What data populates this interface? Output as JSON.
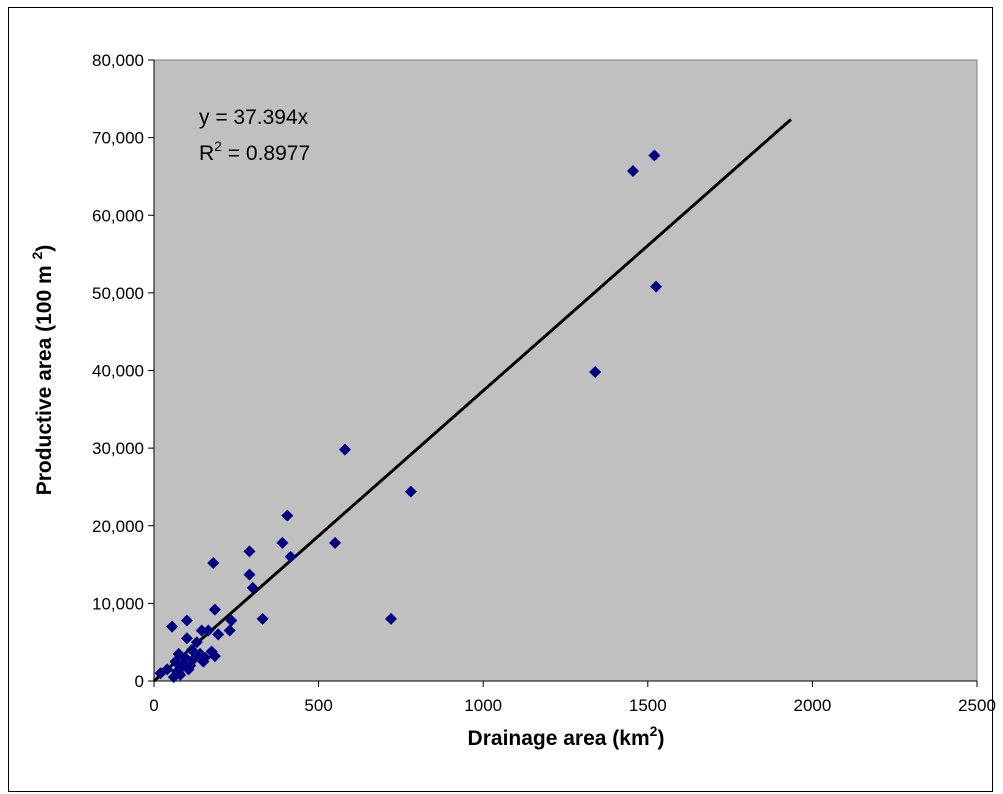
{
  "chart_data": {
    "type": "scatter",
    "xlabel": "Drainage area (km",
    "xlabel_sup": "2",
    "xlabel_end": ")",
    "ylabel": "Productive area (100 m ",
    "ylabel_sup": "2",
    "ylabel_end": ")",
    "xlim": [
      0,
      2500
    ],
    "ylim": [
      0,
      80000
    ],
    "x_ticks": [
      0,
      500,
      1000,
      1500,
      2000,
      2500
    ],
    "y_ticks": [
      0,
      10000,
      20000,
      30000,
      40000,
      50000,
      60000,
      70000,
      80000
    ],
    "x_tick_labels": [
      "0",
      "500",
      "1000",
      "1500",
      "2000",
      "2500"
    ],
    "y_tick_labels": [
      "0",
      "10,000",
      "20,000",
      "30,000",
      "40,000",
      "50,000",
      "60,000",
      "70,000",
      "80,000"
    ],
    "grid": false,
    "plot_bg": "#c0c0c0",
    "marker_color": "#000080",
    "trendline": {
      "slope": 37.394,
      "x_range": [
        0,
        1935
      ],
      "color": "#000000"
    },
    "equation": "y = 37.394x",
    "r2_prefix": "R",
    "r2_sup": "2",
    "r2_value": " = 0.8977",
    "points": [
      [
        20,
        1000
      ],
      [
        40,
        1500
      ],
      [
        55,
        7000
      ],
      [
        60,
        500
      ],
      [
        65,
        2500
      ],
      [
        70,
        1200
      ],
      [
        75,
        3500
      ],
      [
        80,
        800
      ],
      [
        85,
        1800
      ],
      [
        90,
        2300
      ],
      [
        95,
        3000
      ],
      [
        100,
        5500
      ],
      [
        100,
        7800
      ],
      [
        105,
        1500
      ],
      [
        110,
        2000
      ],
      [
        115,
        4000
      ],
      [
        120,
        2800
      ],
      [
        130,
        5000
      ],
      [
        140,
        3500
      ],
      [
        145,
        6500
      ],
      [
        150,
        2500
      ],
      [
        155,
        3000
      ],
      [
        165,
        6500
      ],
      [
        175,
        3800
      ],
      [
        180,
        15200
      ],
      [
        185,
        9200
      ],
      [
        185,
        3200
      ],
      [
        195,
        6000
      ],
      [
        230,
        6500
      ],
      [
        235,
        7800
      ],
      [
        290,
        16700
      ],
      [
        290,
        13700
      ],
      [
        300,
        12000
      ],
      [
        330,
        8000
      ],
      [
        390,
        17800
      ],
      [
        405,
        21300
      ],
      [
        415,
        16000
      ],
      [
        550,
        17800
      ],
      [
        580,
        29800
      ],
      [
        720,
        8000
      ],
      [
        780,
        24400
      ],
      [
        1340,
        39800
      ],
      [
        1455,
        65700
      ],
      [
        1520,
        67700
      ],
      [
        1525,
        50800
      ]
    ]
  }
}
